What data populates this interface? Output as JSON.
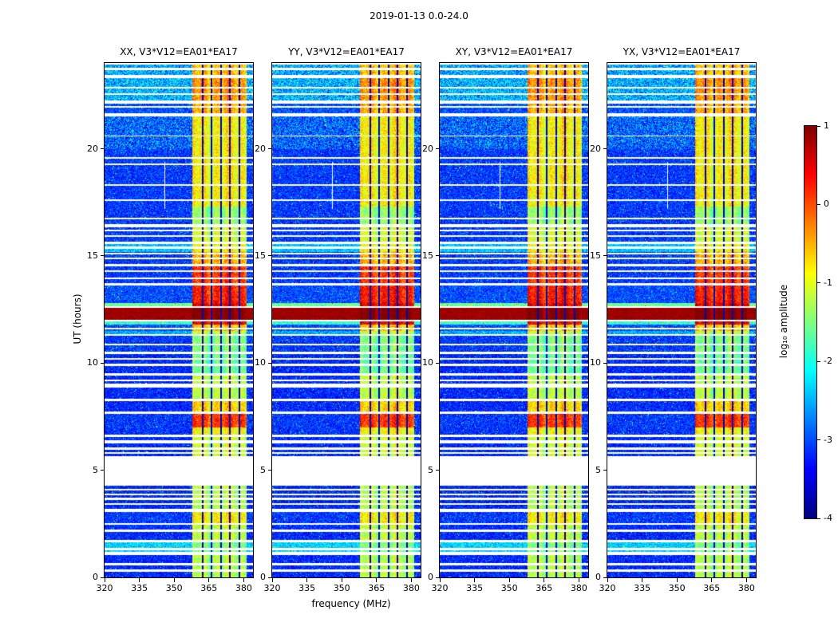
{
  "chart_data": {
    "type": "heatmap",
    "figure_title": "2019-01-13 0.0-24.0",
    "panel_titles": [
      "XX, V3*V12=EA01*EA17",
      "YY, V3*V12=EA01*EA17",
      "XY, V3*V12=EA01*EA17",
      "YX, V3*V12=EA01*EA17"
    ],
    "xlabel": "frequency (MHz)",
    "ylabel": "UT (hours)",
    "colorbar_label": "log₁₀ amplitude",
    "colorbar_ticks": [
      1,
      0,
      -1,
      -2,
      -3,
      -4
    ],
    "value_range": [
      -4,
      1
    ],
    "x_range": [
      320,
      384
    ],
    "x_ticks": [
      320,
      335,
      350,
      365,
      380
    ],
    "y_range": [
      0,
      24
    ],
    "y_ticks": [
      0,
      5,
      10,
      15,
      20
    ],
    "background_level": -3.2,
    "band": {
      "f0": 357.8,
      "f1": 381.3,
      "notches": [
        362.3,
        366.2,
        370.2,
        374.1,
        378.0
      ]
    },
    "segments_format": [
      "t_start_hours",
      "t_end_hours",
      "background_log10_level",
      "band_log10_level",
      "mottled_flag"
    ],
    "segments": [
      [
        0.0,
        1.07,
        -3.2,
        -1.25,
        0
      ],
      [
        1.07,
        1.64,
        -2.35,
        -1.5,
        0
      ],
      [
        1.64,
        2.4,
        -3.2,
        -1.2,
        0
      ],
      [
        2.4,
        3.07,
        -3.1,
        -0.85,
        0
      ],
      [
        3.07,
        4.28,
        -3.2,
        -1.25,
        0
      ],
      [
        4.28,
        5.62,
        -3.2,
        -1.2,
        0
      ],
      [
        5.62,
        6.6,
        -3.2,
        -1.1,
        0
      ],
      [
        6.6,
        7.0,
        -3.15,
        -0.9,
        0
      ],
      [
        7.0,
        7.63,
        -3.1,
        0.1,
        0
      ],
      [
        7.63,
        8.3,
        -3.2,
        -0.7,
        0
      ],
      [
        8.3,
        9.45,
        -3.2,
        -1.2,
        0
      ],
      [
        9.45,
        10.45,
        -3.2,
        -1.6,
        0
      ],
      [
        10.45,
        11.29,
        -3.1,
        -1.5,
        0
      ],
      [
        11.29,
        11.5,
        -2.55,
        -1.2,
        0
      ],
      [
        11.5,
        11.78,
        -3.0,
        -0.6,
        0
      ],
      [
        11.78,
        12.02,
        -1.9,
        0.45,
        0
      ],
      [
        12.02,
        12.6,
        0.85,
        1.0,
        0
      ],
      [
        12.6,
        12.8,
        -1.6,
        0.5,
        0
      ],
      [
        12.8,
        13.64,
        -3.0,
        0.25,
        0
      ],
      [
        13.64,
        14.54,
        -3.1,
        0.1,
        0
      ],
      [
        14.54,
        15.2,
        -3.1,
        -0.5,
        0
      ],
      [
        15.2,
        15.59,
        -2.45,
        -0.9,
        0
      ],
      [
        15.59,
        16.36,
        -3.1,
        -1.1,
        0
      ],
      [
        16.36,
        17.3,
        -3.1,
        -1.4,
        0
      ],
      [
        17.3,
        20.0,
        -3.1,
        -0.85,
        0
      ],
      [
        20.0,
        21.52,
        -2.9,
        -0.85,
        1
      ],
      [
        21.52,
        22.13,
        -3.0,
        -0.5,
        0
      ],
      [
        22.13,
        23.33,
        -2.5,
        -0.35,
        1
      ],
      [
        23.33,
        24.01,
        -2.55,
        -0.6,
        1
      ]
    ],
    "gaps_format": [
      "t_start_hours",
      "t_end_hours"
    ],
    "gaps": [
      [
        0.28,
        0.36
      ],
      [
        0.59,
        0.65
      ],
      [
        1.07,
        1.16
      ],
      [
        1.29,
        1.35
      ],
      [
        1.64,
        1.72
      ],
      [
        2.15,
        2.21
      ],
      [
        2.47,
        2.52
      ],
      [
        3.07,
        3.17
      ],
      [
        3.39,
        3.44
      ],
      [
        3.63,
        3.69
      ],
      [
        3.85,
        3.9
      ],
      [
        4.07,
        4.13
      ],
      [
        4.28,
        5.62
      ],
      [
        5.77,
        5.82
      ],
      [
        5.99,
        6.04
      ],
      [
        6.27,
        6.37
      ],
      [
        6.58,
        6.66
      ],
      [
        7.63,
        7.73
      ],
      [
        8.24,
        8.32
      ],
      [
        8.88,
        9.02
      ],
      [
        9.17,
        9.22
      ],
      [
        9.45,
        9.51
      ],
      [
        9.89,
        9.94
      ],
      [
        10.18,
        10.22
      ],
      [
        10.43,
        10.53
      ],
      [
        10.83,
        10.87
      ],
      [
        11.29,
        11.34
      ],
      [
        11.6,
        11.64
      ],
      [
        11.96,
        12.0
      ],
      [
        12.6,
        12.64
      ],
      [
        13.64,
        13.72
      ],
      [
        13.92,
        13.97
      ],
      [
        14.27,
        14.32
      ],
      [
        14.54,
        14.62
      ],
      [
        14.87,
        14.92
      ],
      [
        15.09,
        15.14
      ],
      [
        15.35,
        15.41
      ],
      [
        15.59,
        15.64
      ],
      [
        15.89,
        15.95
      ],
      [
        16.18,
        16.22
      ],
      [
        16.36,
        16.48
      ],
      [
        16.73,
        16.77
      ],
      [
        17.58,
        17.61
      ],
      [
        18.28,
        18.31
      ],
      [
        19.25,
        19.3
      ],
      [
        19.55,
        19.59
      ],
      [
        20.58,
        20.61
      ],
      [
        21.52,
        21.64
      ],
      [
        21.92,
        21.97
      ],
      [
        22.13,
        22.23
      ],
      [
        22.53,
        22.57
      ],
      [
        22.82,
        22.87
      ],
      [
        23.33,
        23.43
      ],
      [
        23.69,
        23.74
      ],
      [
        23.93,
        23.97
      ]
    ],
    "vlines": [
      {
        "f": 346.0,
        "t0": 17.2,
        "t1": 19.4
      }
    ]
  }
}
